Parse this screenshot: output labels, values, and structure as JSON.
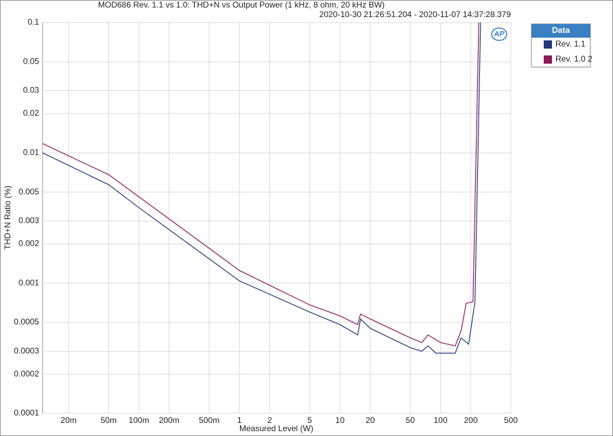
{
  "chart_data": {
    "type": "line",
    "title": "MOD686 Rev. 1.1 vs 1.0: THD+N vs Output Power (1 kHz, 8 ohm, 20 kHz BW)",
    "subtitle": "2020-10-30 21:26:51.204 - 2020-11-07 14:37:28.379",
    "x_label": "Measured Level (W)",
    "y_label": "THD+N Ratio (%)",
    "logo": "AP",
    "legend_title": "Data",
    "log_x": true,
    "log_y": true,
    "grid": true,
    "xlim": [
      0.011,
      500
    ],
    "ylim": [
      0.0001,
      0.1
    ],
    "xticks": [
      {
        "value": 0.02,
        "label": "20m"
      },
      {
        "value": 0.05,
        "label": "50m"
      },
      {
        "value": 0.1,
        "label": "100m"
      },
      {
        "value": 0.2,
        "label": "200m"
      },
      {
        "value": 0.5,
        "label": "500m"
      },
      1,
      2,
      5,
      10,
      20,
      50,
      100,
      200,
      500
    ],
    "yticks": [
      0.1,
      0.05,
      0.03,
      0.02,
      0.01,
      0.005,
      0.003,
      0.002,
      0.001,
      0.0005,
      0.0003,
      0.0002,
      0.0001
    ],
    "series": [
      {
        "name": "Rev. 1.1",
        "color": "#1f3a7a",
        "x": [
          0.011,
          0.05,
          0.1,
          1,
          5,
          10,
          15,
          16,
          20,
          50,
          65,
          75,
          90,
          140,
          160,
          190,
          220,
          250
        ],
        "values": [
          0.01,
          0.0057,
          0.0038,
          0.00104,
          0.0006,
          0.00048,
          0.0004,
          0.00053,
          0.00045,
          0.00032,
          0.0003,
          0.00033,
          0.00029,
          0.00029,
          0.00038,
          0.00034,
          0.00072,
          0.1
        ]
      },
      {
        "name": "Rev. 1.0 2",
        "color": "#8b1a5a",
        "x": [
          0.011,
          0.05,
          0.1,
          1,
          5,
          10,
          15,
          16,
          20,
          50,
          65,
          75,
          100,
          140,
          160,
          180,
          210,
          240
        ],
        "values": [
          0.0118,
          0.0068,
          0.0046,
          0.00125,
          0.00068,
          0.00056,
          0.00048,
          0.00058,
          0.00053,
          0.00038,
          0.00035,
          0.0004,
          0.00035,
          0.00033,
          0.00043,
          0.0007,
          0.00072,
          0.1
        ]
      }
    ]
  }
}
